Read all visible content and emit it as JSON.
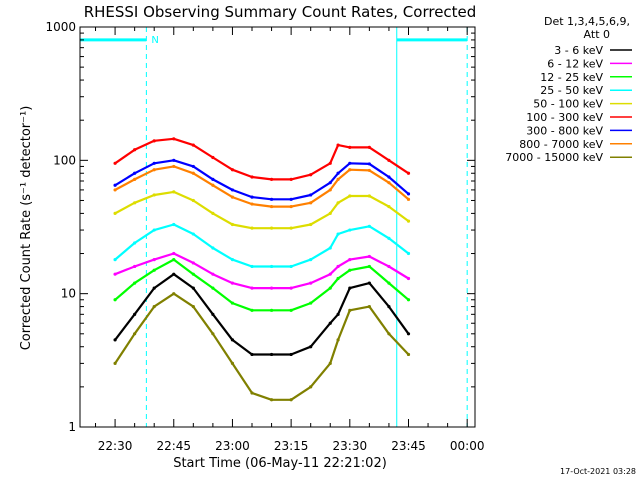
{
  "chart_data": {
    "type": "line",
    "title": "RHESSI Observing Summary Count Rates, Corrected",
    "xlabel": "Start Time (06-May-11 22:21:02)",
    "ylabel": "Corrected Count Rate (s⁻¹ detector⁻¹)",
    "y_scale": "log",
    "xlim": [
      "22:21:02",
      "00:02:00"
    ],
    "ylim": [
      1,
      1000
    ],
    "x_ticks": [
      "22:30",
      "22:45",
      "23:00",
      "23:15",
      "23:30",
      "23:45",
      "00:00"
    ],
    "y_ticks": [
      "1",
      "10",
      "100",
      "1000"
    ],
    "detector_info": [
      "Det 1,3,4,5,6,9,",
      "Att 0"
    ],
    "timestamp": "17-Oct-2021 03:28",
    "night_marker_label": "N",
    "night_intervals": [
      [
        "22:21:02",
        "22:38:00"
      ],
      [
        "23:42:00",
        "00:00:00"
      ]
    ],
    "x": [
      "22:30",
      "22:35",
      "22:40",
      "22:45",
      "22:50",
      "22:55",
      "23:00",
      "23:05",
      "23:10",
      "23:15",
      "23:20",
      "23:25",
      "23:27",
      "23:30",
      "23:35",
      "23:40",
      "23:45"
    ],
    "series": [
      {
        "name": "3 - 6 keV",
        "color": "#000000",
        "values": [
          4.5,
          7,
          11,
          14,
          11,
          7,
          4.5,
          3.5,
          3.5,
          3.5,
          4,
          6,
          7,
          11,
          12,
          8,
          5
        ]
      },
      {
        "name": "6 - 12 keV",
        "color": "#ff00ff",
        "values": [
          14,
          16,
          18,
          20,
          17,
          14,
          12,
          11,
          11,
          11,
          12,
          14,
          16,
          18,
          19,
          16,
          13
        ]
      },
      {
        "name": "12 - 25 keV",
        "color": "#00ff00",
        "values": [
          9,
          12,
          15,
          18,
          14,
          11,
          8.5,
          7.5,
          7.5,
          7.5,
          8.5,
          11,
          13,
          15,
          16,
          12,
          9
        ]
      },
      {
        "name": "25 - 50 keV",
        "color": "#00ffff",
        "values": [
          18,
          24,
          30,
          33,
          28,
          22,
          18,
          16,
          16,
          16,
          18,
          22,
          28,
          30,
          32,
          26,
          20
        ]
      },
      {
        "name": "50 - 100 keV",
        "color": "#dddd00",
        "values": [
          40,
          48,
          55,
          58,
          50,
          40,
          33,
          31,
          31,
          31,
          33,
          40,
          48,
          54,
          54,
          45,
          35
        ]
      },
      {
        "name": "100 - 300 keV",
        "color": "#ff0000",
        "values": [
          95,
          120,
          140,
          145,
          130,
          105,
          85,
          75,
          72,
          72,
          78,
          95,
          130,
          125,
          125,
          100,
          80
        ]
      },
      {
        "name": "300 - 800 keV",
        "color": "#0000ff",
        "values": [
          65,
          80,
          95,
          100,
          90,
          72,
          60,
          53,
          51,
          51,
          55,
          68,
          80,
          95,
          94,
          75,
          56
        ]
      },
      {
        "name": "800 - 7000 keV",
        "color": "#ff8000",
        "values": [
          60,
          72,
          85,
          90,
          80,
          65,
          53,
          47,
          45,
          45,
          48,
          60,
          72,
          85,
          84,
          68,
          51
        ]
      },
      {
        "name": "7000 - 15000 keV",
        "color": "#808000",
        "values": [
          3,
          5,
          8,
          10,
          8,
          5,
          3,
          1.8,
          1.6,
          1.6,
          2,
          3,
          4.5,
          7.5,
          8,
          5,
          3.5
        ]
      }
    ]
  }
}
